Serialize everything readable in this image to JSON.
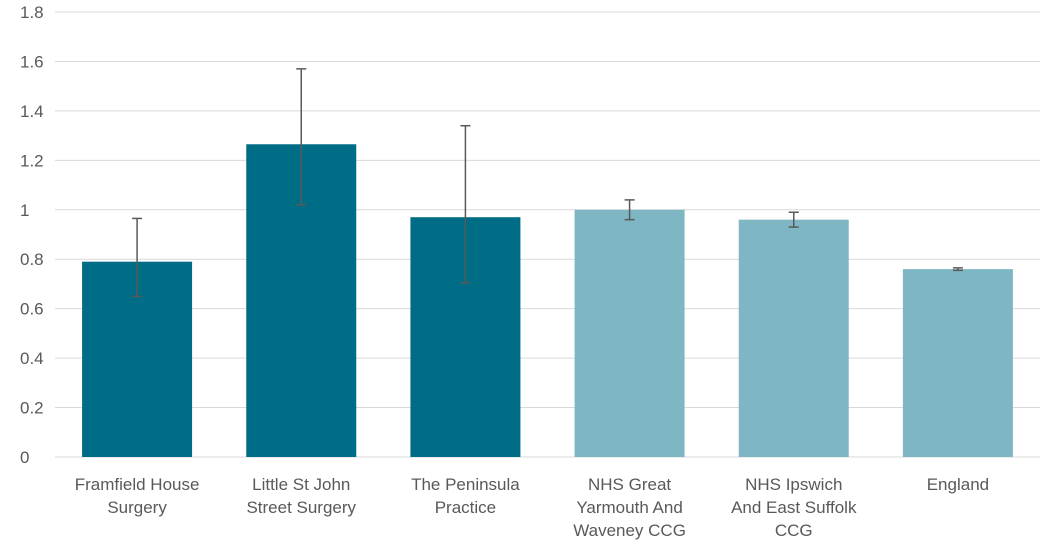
{
  "chart_data": {
    "type": "bar",
    "title": "",
    "xlabel": "",
    "ylabel": "",
    "ylim": [
      0,
      1.8
    ],
    "yticks": [
      0,
      0.2,
      0.4,
      0.6,
      0.8,
      1,
      1.2,
      1.4,
      1.6,
      1.8
    ],
    "ytick_labels": [
      "0",
      "0.2",
      "0.4",
      "0.6",
      "0.8",
      "1",
      "1.2",
      "1.4",
      "1.6",
      "1.8"
    ],
    "grid": true,
    "legend": "none",
    "categories": [
      [
        "Framfield House",
        "Surgery"
      ],
      [
        "Little St John",
        "Street Surgery"
      ],
      [
        "The Peninsula",
        "Practice"
      ],
      [
        "NHS Great",
        "Yarmouth And",
        "Waveney CCG"
      ],
      [
        "NHS Ipswich",
        "And East Suffolk",
        "CCG"
      ],
      [
        "England"
      ]
    ],
    "values": [
      0.79,
      1.265,
      0.97,
      1.0,
      0.96,
      0.76
    ],
    "error_low": [
      0.65,
      1.02,
      0.705,
      0.96,
      0.93,
      0.755
    ],
    "error_high": [
      0.965,
      1.57,
      1.34,
      1.04,
      0.99,
      0.765
    ],
    "colors": [
      "#006d87",
      "#006d87",
      "#006d87",
      "#7fb6c3",
      "#7fb6c3",
      "#7fb6c3"
    ],
    "error_color": "#595959",
    "grid_color": "#d9d9d9"
  }
}
